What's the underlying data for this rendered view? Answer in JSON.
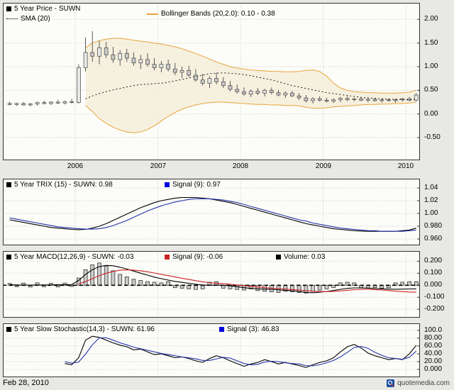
{
  "page": {
    "date_label": "Feb 28, 2010",
    "branding_text": "quotemedia.com",
    "colors": {
      "background": "#e8e8e5",
      "plot_background": "#fcfcf8",
      "grid": "#c9c9c9",
      "border": "#333333"
    }
  },
  "x_years": [
    2005.208,
    2005.292,
    2005.375,
    2005.458,
    2005.542,
    2005.625,
    2005.708,
    2005.792,
    2005.875,
    2005.958,
    2006.042,
    2006.125,
    2006.208,
    2006.292,
    2006.375,
    2006.458,
    2006.542,
    2006.625,
    2006.708,
    2006.792,
    2006.875,
    2006.958,
    2007.042,
    2007.125,
    2007.208,
    2007.292,
    2007.375,
    2007.458,
    2007.542,
    2007.625,
    2007.708,
    2007.792,
    2007.875,
    2007.958,
    2008.042,
    2008.125,
    2008.208,
    2008.292,
    2008.375,
    2008.458,
    2008.542,
    2008.625,
    2008.708,
    2008.792,
    2008.875,
    2008.958,
    2009.042,
    2009.125,
    2009.208,
    2009.292,
    2009.375,
    2009.458,
    2009.542,
    2009.625,
    2009.708,
    2009.792,
    2009.875,
    2009.958,
    2010.042,
    2010.125
  ],
  "chart_data": [
    {
      "type": "candlestick",
      "title": "5 Year Price - SUWN",
      "legend": [
        {
          "label": "5 Year Price - SUWN",
          "marker": "square",
          "color": "#000000"
        },
        {
          "label": "SMA (20)",
          "marker": "dotted-line",
          "color": "#000000"
        },
        {
          "label": "Bollinger Bands (20,2.0): 0.10 - 0.38",
          "marker": "line",
          "color": "#e8a33d"
        }
      ],
      "xticks": [
        2006,
        2007,
        2008,
        2009,
        2010
      ],
      "xtick_labels": [
        "2006",
        "2007",
        "2008",
        "2009",
        "2010"
      ],
      "xlim": [
        2005.125,
        2010.17
      ],
      "ylim": [
        -0.98,
        2.35
      ],
      "yticks": [
        2.0,
        1.5,
        1.0,
        0.5,
        0.0,
        -0.5
      ],
      "ytick_labels": [
        "2.00",
        "1.50",
        "1.00",
        "0.50",
        "0.00",
        "-0.50"
      ],
      "open": [
        0.22,
        0.2,
        0.22,
        0.19,
        0.21,
        0.24,
        0.22,
        0.25,
        0.23,
        0.26,
        0.24,
        0.98,
        1.3,
        1.22,
        1.4,
        1.25,
        1.15,
        1.28,
        1.18,
        1.08,
        1.15,
        1.05,
        0.98,
        1.05,
        0.95,
        0.88,
        0.92,
        0.82,
        0.72,
        0.65,
        0.75,
        0.68,
        0.6,
        0.52,
        0.47,
        0.42,
        0.48,
        0.44,
        0.5,
        0.45,
        0.4,
        0.44,
        0.38,
        0.34,
        0.28,
        0.32,
        0.29,
        0.27,
        0.3,
        0.33,
        0.3,
        0.32,
        0.29,
        0.31,
        0.28,
        0.3,
        0.28,
        0.3,
        0.32,
        0.29
      ],
      "high": [
        0.26,
        0.24,
        0.25,
        0.23,
        0.26,
        0.28,
        0.27,
        0.3,
        0.28,
        0.32,
        1.05,
        1.62,
        1.75,
        1.55,
        1.52,
        1.42,
        1.35,
        1.38,
        1.3,
        1.25,
        1.28,
        1.18,
        1.12,
        1.15,
        1.08,
        1.0,
        1.02,
        0.95,
        0.85,
        0.8,
        0.88,
        0.78,
        0.7,
        0.62,
        0.56,
        0.52,
        0.55,
        0.53,
        0.56,
        0.51,
        0.48,
        0.49,
        0.44,
        0.4,
        0.35,
        0.37,
        0.34,
        0.33,
        0.36,
        0.37,
        0.34,
        0.35,
        0.33,
        0.34,
        0.32,
        0.33,
        0.32,
        0.34,
        0.36,
        0.44
      ],
      "low": [
        0.18,
        0.17,
        0.18,
        0.16,
        0.18,
        0.2,
        0.19,
        0.21,
        0.2,
        0.22,
        0.22,
        0.9,
        1.1,
        1.05,
        1.18,
        1.08,
        1.02,
        1.1,
        1.02,
        0.95,
        1.0,
        0.92,
        0.88,
        0.9,
        0.82,
        0.76,
        0.78,
        0.68,
        0.6,
        0.55,
        0.62,
        0.55,
        0.48,
        0.43,
        0.38,
        0.36,
        0.4,
        0.37,
        0.41,
        0.37,
        0.34,
        0.36,
        0.3,
        0.24,
        0.22,
        0.26,
        0.24,
        0.23,
        0.25,
        0.27,
        0.26,
        0.27,
        0.25,
        0.26,
        0.24,
        0.26,
        0.24,
        0.26,
        0.27,
        0.27
      ],
      "close": [
        0.2,
        0.22,
        0.19,
        0.21,
        0.24,
        0.22,
        0.25,
        0.23,
        0.26,
        0.24,
        0.98,
        1.3,
        1.22,
        1.4,
        1.25,
        1.15,
        1.28,
        1.18,
        1.08,
        1.15,
        1.05,
        0.98,
        1.05,
        0.95,
        0.88,
        0.92,
        0.82,
        0.72,
        0.65,
        0.75,
        0.68,
        0.6,
        0.52,
        0.47,
        0.42,
        0.48,
        0.44,
        0.5,
        0.45,
        0.4,
        0.44,
        0.38,
        0.34,
        0.28,
        0.32,
        0.29,
        0.27,
        0.3,
        0.33,
        0.3,
        0.32,
        0.29,
        0.31,
        0.28,
        0.3,
        0.28,
        0.3,
        0.32,
        0.29,
        0.4
      ],
      "sma20": [
        null,
        null,
        null,
        null,
        null,
        null,
        null,
        null,
        null,
        null,
        null,
        0.32,
        0.38,
        0.43,
        0.47,
        0.51,
        0.54,
        0.57,
        0.6,
        0.62,
        0.63,
        0.64,
        0.65,
        0.67,
        0.7,
        0.73,
        0.76,
        0.79,
        0.82,
        0.85,
        0.86,
        0.87,
        0.86,
        0.85,
        0.83,
        0.81,
        0.78,
        0.75,
        0.72,
        0.68,
        0.64,
        0.6,
        0.57,
        0.54,
        0.51,
        0.48,
        0.45,
        0.43,
        0.41,
        0.39,
        0.37,
        0.35,
        0.34,
        0.33,
        0.32,
        0.31,
        0.31,
        0.3,
        0.3,
        0.31
      ],
      "bollinger_upper": [
        null,
        null,
        null,
        null,
        null,
        null,
        null,
        null,
        null,
        null,
        null,
        1.4,
        1.5,
        1.55,
        1.58,
        1.6,
        1.6,
        1.58,
        1.56,
        1.54,
        1.52,
        1.5,
        1.48,
        1.45,
        1.42,
        1.38,
        1.33,
        1.28,
        1.22,
        1.16,
        1.1,
        1.05,
        1.0,
        0.97,
        0.95,
        0.93,
        0.92,
        0.91,
        0.9,
        0.9,
        0.89,
        0.89,
        0.9,
        0.92,
        0.93,
        0.9,
        0.8,
        0.65,
        0.55,
        0.5,
        0.47,
        0.46,
        0.45,
        0.45,
        0.44,
        0.44,
        0.44,
        0.45,
        0.46,
        0.5
      ],
      "bollinger_lower": [
        null,
        null,
        null,
        null,
        null,
        null,
        null,
        null,
        null,
        null,
        null,
        0.18,
        0.05,
        -0.1,
        -0.2,
        -0.28,
        -0.34,
        -0.38,
        -0.4,
        -0.38,
        -0.33,
        -0.25,
        -0.15,
        -0.05,
        0.03,
        0.1,
        0.15,
        0.19,
        0.22,
        0.24,
        0.25,
        0.25,
        0.24,
        0.23,
        0.22,
        0.21,
        0.2,
        0.2,
        0.19,
        0.19,
        0.18,
        0.18,
        0.17,
        0.14,
        0.12,
        0.12,
        0.13,
        0.15,
        0.16,
        0.17,
        0.18,
        0.19,
        0.2,
        0.2,
        0.21,
        0.21,
        0.22,
        0.22,
        0.23,
        0.25
      ],
      "colors": {
        "candle_up": "#e9e9e9",
        "candle_down": "#c9c9c9",
        "candle_border": "#555555",
        "wick": "#333333",
        "sma": "#1a1a1a",
        "band_line": "#e8a33d",
        "band_fill": "#f3ecd4"
      }
    },
    {
      "type": "line",
      "title": "5 Year TRIX (15) - SUWN",
      "legend": [
        {
          "label": "5 Year TRIX (15) - SUWN: 0.98",
          "marker": "square",
          "color": "#000000"
        },
        {
          "label": "Signal (9): 0.97",
          "marker": "square",
          "color": "#0000dd"
        }
      ],
      "ylim": [
        0.95,
        1.0545
      ],
      "yticks": [
        1.04,
        1.02,
        1.0,
        0.98,
        0.96
      ],
      "ytick_labels": [
        "1.04",
        "1.02",
        "1.00",
        "0.980",
        "0.960"
      ],
      "series": [
        {
          "name": "TRIX",
          "color": "#000000",
          "values": [
            0.99,
            0.988,
            0.986,
            0.984,
            0.982,
            0.98,
            0.978,
            0.977,
            0.976,
            0.975,
            0.9745,
            0.975,
            0.977,
            0.98,
            0.984,
            0.989,
            0.994,
            0.999,
            1.004,
            1.009,
            1.013,
            1.017,
            1.02,
            1.022,
            1.024,
            1.025,
            1.025,
            1.025,
            1.024,
            1.023,
            1.021,
            1.019,
            1.017,
            1.014,
            1.011,
            1.008,
            1.005,
            1.002,
            0.999,
            0.996,
            0.993,
            0.99,
            0.987,
            0.984,
            0.982,
            0.98,
            0.978,
            0.976,
            0.975,
            0.974,
            0.973,
            0.9725,
            0.972,
            0.972,
            0.972,
            0.972,
            0.972,
            0.973,
            0.974,
            0.977
          ]
        },
        {
          "name": "Signal",
          "color": "#2233aa",
          "values": [
            0.993,
            0.991,
            0.989,
            0.987,
            0.985,
            0.983,
            0.981,
            0.979,
            0.978,
            0.977,
            0.976,
            0.9755,
            0.9755,
            0.976,
            0.978,
            0.981,
            0.985,
            0.989,
            0.994,
            0.999,
            1.004,
            1.008,
            1.012,
            1.015,
            1.018,
            1.02,
            1.022,
            1.023,
            1.023,
            1.023,
            1.022,
            1.021,
            1.019,
            1.017,
            1.014,
            1.011,
            1.008,
            1.005,
            1.002,
            0.999,
            0.996,
            0.993,
            0.99,
            0.988,
            0.985,
            0.983,
            0.981,
            0.979,
            0.977,
            0.976,
            0.975,
            0.974,
            0.973,
            0.973,
            0.972,
            0.972,
            0.972,
            0.972,
            0.973,
            0.974
          ]
        }
      ]
    },
    {
      "type": "macd",
      "title": "5 Year MACD(12,26,9) - SUWN",
      "legend": [
        {
          "label": "5 Year MACD(12,26,9) - SUWN: -0.03",
          "marker": "square",
          "color": "#000000"
        },
        {
          "label": "Signal (9): -0.06",
          "marker": "square",
          "color": "#cc2222"
        },
        {
          "label": "Volume: 0.03",
          "marker": "square",
          "color": "#000000"
        }
      ],
      "ylim": [
        -0.27,
        0.285
      ],
      "yticks": [
        0.2,
        0.1,
        0.0,
        -0.1,
        -0.2
      ],
      "ytick_labels": [
        "0.200",
        "0.100",
        "0.000",
        "-0.100",
        "-0.200"
      ],
      "zero_line": true,
      "bars": {
        "name": "Volume",
        "color": "#cccccc",
        "border": "#333333",
        "values": [
          0.015,
          -0.012,
          0.018,
          -0.015,
          0.02,
          -0.012,
          0.016,
          -0.014,
          0.018,
          -0.01,
          0.06,
          0.13,
          0.17,
          0.185,
          0.16,
          0.12,
          0.09,
          0.07,
          0.05,
          0.04,
          0.03,
          0.025,
          0.02,
          0.03,
          -0.02,
          -0.025,
          -0.03,
          -0.035,
          -0.03,
          0.025,
          0.03,
          -0.025,
          -0.03,
          -0.035,
          -0.04,
          -0.03,
          -0.045,
          -0.05,
          -0.055,
          -0.06,
          -0.05,
          -0.055,
          -0.06,
          -0.065,
          -0.05,
          -0.04,
          -0.03,
          -0.02,
          0.02,
          0.025,
          0.02,
          -0.02,
          -0.025,
          -0.02,
          -0.025,
          -0.02,
          0.02,
          0.025,
          0.03,
          0.03
        ]
      },
      "series": [
        {
          "name": "MACD",
          "color": "#000000",
          "values": [
            0.005,
            0.003,
            0.002,
            0.001,
            0.002,
            0.003,
            0.003,
            0.004,
            0.004,
            0.005,
            0.04,
            0.09,
            0.13,
            0.155,
            0.165,
            0.162,
            0.15,
            0.135,
            0.118,
            0.1,
            0.084,
            0.068,
            0.055,
            0.043,
            0.032,
            0.024,
            0.016,
            0.008,
            0.002,
            0.0,
            0.002,
            0.0,
            -0.005,
            -0.012,
            -0.02,
            -0.026,
            -0.03,
            -0.032,
            -0.034,
            -0.038,
            -0.042,
            -0.046,
            -0.052,
            -0.06,
            -0.062,
            -0.058,
            -0.052,
            -0.044,
            -0.034,
            -0.026,
            -0.022,
            -0.022,
            -0.024,
            -0.028,
            -0.03,
            -0.032,
            -0.033,
            -0.032,
            -0.031,
            -0.03
          ]
        },
        {
          "name": "Signal",
          "color": "#cc2222",
          "values": [
            null,
            null,
            null,
            null,
            null,
            null,
            null,
            null,
            null,
            null,
            0.012,
            0.03,
            0.055,
            0.08,
            0.1,
            0.115,
            0.125,
            0.128,
            0.126,
            0.12,
            0.112,
            0.102,
            0.091,
            0.08,
            0.069,
            0.058,
            0.048,
            0.038,
            0.029,
            0.022,
            0.017,
            0.013,
            0.008,
            0.003,
            -0.003,
            -0.009,
            -0.015,
            -0.02,
            -0.024,
            -0.028,
            -0.032,
            -0.036,
            -0.04,
            -0.045,
            -0.05,
            -0.053,
            -0.053,
            -0.051,
            -0.047,
            -0.042,
            -0.037,
            -0.034,
            -0.034,
            -0.036,
            -0.04,
            -0.044,
            -0.049,
            -0.053,
            -0.056,
            -0.058
          ]
        }
      ]
    },
    {
      "type": "line",
      "title": "5 Year Slow Stochastic(14,3) - SUWN",
      "legend": [
        {
          "label": "5 Year  Slow Stochastic(14,3) - SUWN: 61.96",
          "marker": "square",
          "color": "#000000"
        },
        {
          "label": "Signal (3): 46.83",
          "marker": "square",
          "color": "#0000dd"
        }
      ],
      "ylim": [
        -20,
        118
      ],
      "yticks": [
        100,
        80,
        60,
        40,
        20,
        0
      ],
      "ytick_labels": [
        "100.0",
        "80.00",
        "60.00",
        "40.00",
        "20.00",
        "0.000"
      ],
      "series": [
        {
          "name": "SlowK",
          "color": "#000000",
          "values": [
            null,
            null,
            null,
            null,
            null,
            null,
            null,
            null,
            15,
            12,
            30,
            75,
            85,
            82,
            75,
            68,
            62,
            58,
            50,
            52,
            45,
            38,
            40,
            35,
            30,
            32,
            28,
            22,
            18,
            28,
            35,
            30,
            22,
            15,
            8,
            14,
            18,
            25,
            20,
            14,
            18,
            14,
            10,
            5,
            12,
            18,
            22,
            30,
            45,
            58,
            64,
            55,
            42,
            35,
            30,
            25,
            28,
            25,
            40,
            62
          ]
        },
        {
          "name": "Signal",
          "color": "#2233aa",
          "values": [
            null,
            null,
            null,
            null,
            null,
            null,
            null,
            null,
            20,
            16,
            19,
            39,
            63,
            81,
            81,
            75,
            68,
            63,
            57,
            53,
            49,
            45,
            41,
            38,
            35,
            32,
            30,
            27,
            23,
            23,
            27,
            31,
            29,
            22,
            15,
            12,
            13,
            19,
            21,
            20,
            17,
            15,
            14,
            10,
            9,
            12,
            17,
            23,
            32,
            44,
            56,
            59,
            54,
            44,
            36,
            30,
            28,
            26,
            31,
            47
          ]
        }
      ]
    }
  ]
}
